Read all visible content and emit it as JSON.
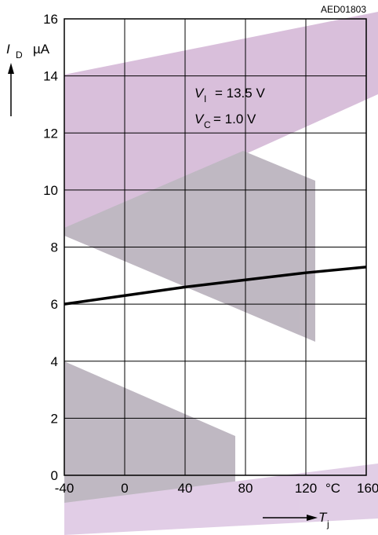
{
  "chart_data": {
    "type": "line",
    "code": "AED01803",
    "y_label": {
      "symbol": "I",
      "subscript": "D",
      "unit": "µA"
    },
    "x_label": {
      "symbol": "T",
      "subscript": "j"
    },
    "x_unit": "°C",
    "annotations": [
      {
        "symbol": "V",
        "subscript": "I",
        "text": "= 13.5 V"
      },
      {
        "symbol": "V",
        "subscript": "C",
        "text": "= 1.0 V"
      }
    ],
    "x": [
      -40,
      0,
      40,
      80,
      120,
      160
    ],
    "series": [
      {
        "color": "#000000",
        "values": [
          6.0,
          6.3,
          6.6,
          6.85,
          7.1,
          7.3
        ]
      }
    ],
    "xlim": [
      -40,
      160
    ],
    "xticks": [
      -40,
      0,
      40,
      80,
      120,
      160
    ],
    "ylim": [
      0,
      16
    ],
    "yticks": [
      0,
      2,
      4,
      6,
      8,
      10,
      12,
      14,
      16
    ],
    "grid": true
  }
}
